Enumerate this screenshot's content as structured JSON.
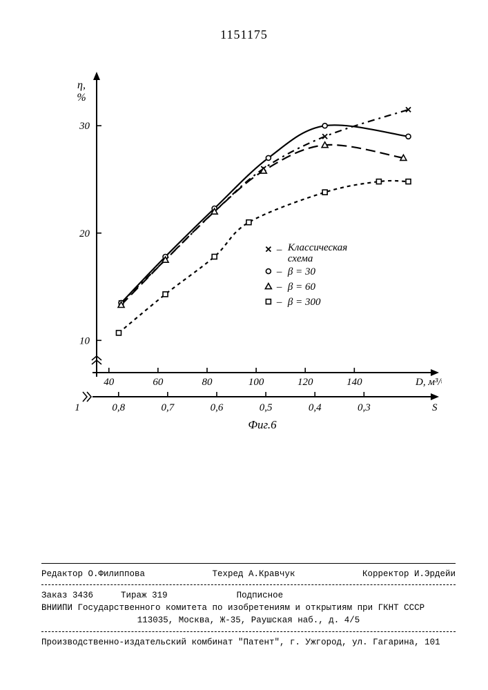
{
  "doc_number": "1151175",
  "chart": {
    "type": "line",
    "ylabel_top": "η,",
    "ylabel_bottom": "%",
    "x1_unit": "D, м³/ч",
    "x2_unit": "S",
    "fig_label": "Фиг.6",
    "yticks": [
      10,
      20,
      30
    ],
    "x1_ticks": [
      40,
      60,
      80,
      100,
      120,
      140
    ],
    "x2_axis_start": "1",
    "x2_ticks": [
      "0,8",
      "0,7",
      "0,6",
      "0,5",
      "0,4",
      "0,3"
    ],
    "xlim": [
      35,
      170
    ],
    "ylim": [
      7,
      34
    ],
    "background": "#ffffff",
    "axis_color": "#000000",
    "line_width": 2.2,
    "marker_size": 7,
    "legend": {
      "items": [
        {
          "marker": "x",
          "label": "Классическая схема"
        },
        {
          "marker": "circle",
          "label": "β = 30"
        },
        {
          "marker": "triangle",
          "label": "β = 60"
        },
        {
          "marker": "square",
          "label": "β = 300"
        }
      ]
    },
    "series": [
      {
        "name": "classical",
        "marker": "x",
        "dash": "10,6,3,6",
        "color": "#000000",
        "points": [
          {
            "x": 45,
            "y": 13.5
          },
          {
            "x": 63,
            "y": 17.5
          },
          {
            "x": 83,
            "y": 22.0
          },
          {
            "x": 103,
            "y": 26.0
          },
          {
            "x": 128,
            "y": 29.0
          },
          {
            "x": 162,
            "y": 31.5
          }
        ]
      },
      {
        "name": "beta30",
        "marker": "circle",
        "dash": "",
        "color": "#000000",
        "points": [
          {
            "x": 45,
            "y": 13.5
          },
          {
            "x": 63,
            "y": 17.8
          },
          {
            "x": 83,
            "y": 22.3
          },
          {
            "x": 105,
            "y": 27.0
          },
          {
            "x": 128,
            "y": 30.0
          },
          {
            "x": 162,
            "y": 29.0
          }
        ]
      },
      {
        "name": "beta60",
        "marker": "triangle",
        "dash": "14,7",
        "color": "#000000",
        "points": [
          {
            "x": 45,
            "y": 13.3
          },
          {
            "x": 63,
            "y": 17.5
          },
          {
            "x": 83,
            "y": 22.0
          },
          {
            "x": 103,
            "y": 25.8
          },
          {
            "x": 128,
            "y": 28.2
          },
          {
            "x": 160,
            "y": 27.0
          }
        ]
      },
      {
        "name": "beta300",
        "marker": "square",
        "dash": "5,5",
        "color": "#000000",
        "points": [
          {
            "x": 44,
            "y": 10.7
          },
          {
            "x": 63,
            "y": 14.3
          },
          {
            "x": 83,
            "y": 17.8
          },
          {
            "x": 97,
            "y": 21.0
          },
          {
            "x": 128,
            "y": 23.8
          },
          {
            "x": 150,
            "y": 24.8
          },
          {
            "x": 162,
            "y": 24.8
          }
        ]
      }
    ]
  },
  "footer": {
    "row1": {
      "editor_lbl": "Редактор",
      "editor": "О.Филиппова",
      "tech_lbl": "Техред",
      "tech": "А.Кравчук",
      "corr_lbl": "Корректор",
      "corr": "И.Эрдейи"
    },
    "row2": {
      "order_lbl": "Заказ",
      "order": "3436",
      "tir_lbl": "Тираж",
      "tir": "319",
      "sub": "Подписное"
    },
    "line3": "ВНИИПИ Государственного комитета по изобретениям и открытиям при ГКНТ СССР",
    "line4": "113035, Москва, Ж-35, Раушская наб., д. 4/5",
    "line5": "Производственно-издательский комбинат \"Патент\", г. Ужгород, ул. Гагарина, 101"
  }
}
